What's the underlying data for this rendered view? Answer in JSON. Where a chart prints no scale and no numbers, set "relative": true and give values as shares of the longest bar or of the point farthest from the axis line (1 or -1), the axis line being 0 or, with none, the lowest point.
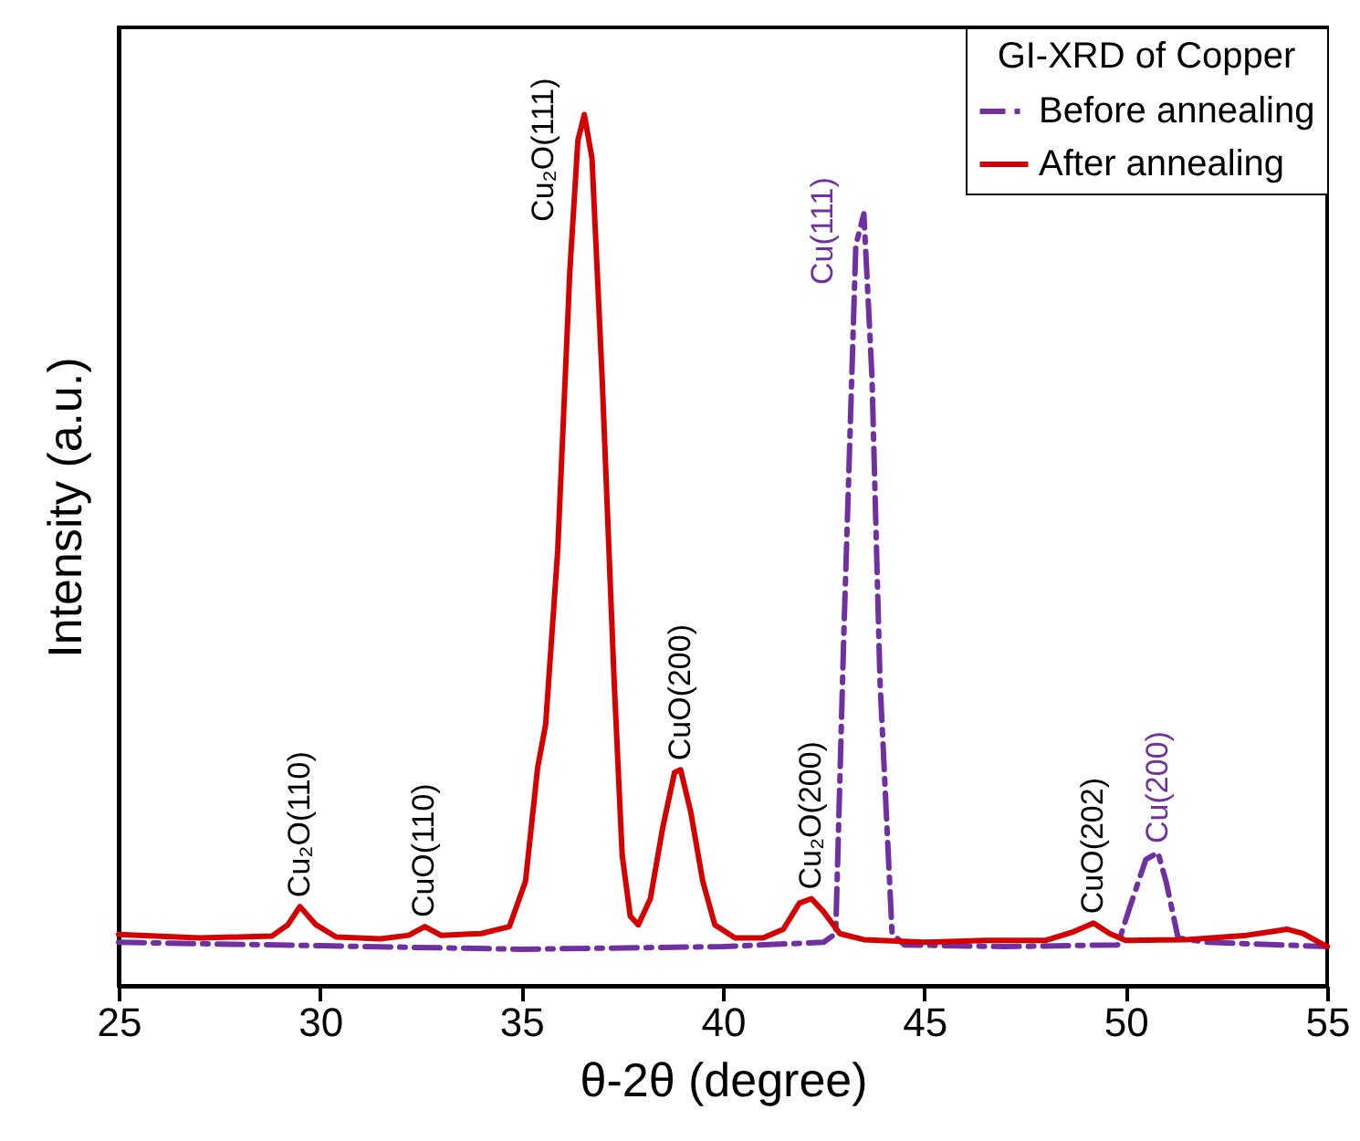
{
  "chart_data": {
    "type": "line",
    "relative": true,
    "xlabel": "θ-2θ (degree)",
    "ylabel": "Intensity (a.u.)",
    "legend_title": "GI-XRD of Copper",
    "legend": "top right",
    "xlim": [
      25,
      55
    ],
    "xticks": [
      25,
      30,
      35,
      40,
      45,
      50,
      55
    ],
    "grid": false,
    "series": [
      {
        "name": "Before annealing",
        "color": "#7030a0",
        "line_style": "dashed",
        "x": [
          25,
          30,
          35,
          40,
          42.5,
          42.8,
          43.0,
          43.3,
          43.5,
          43.7,
          43.9,
          44.2,
          44.5,
          47,
          49.8,
          50.1,
          50.5,
          50.8,
          51.0,
          51.3,
          52,
          55
        ],
        "values": [
          0.05,
          0.046,
          0.042,
          0.045,
          0.05,
          0.06,
          0.4,
          0.85,
          0.886,
          0.7,
          0.35,
          0.06,
          0.047,
          0.045,
          0.047,
          0.09,
          0.145,
          0.153,
          0.12,
          0.055,
          0.05,
          0.045
        ]
      },
      {
        "name": "After annealing",
        "color": "#d40000",
        "line_style": "solid",
        "x": [
          25,
          27,
          28.8,
          29.2,
          29.5,
          29.9,
          30.4,
          31.5,
          32.2,
          32.6,
          33.0,
          34.0,
          34.7,
          35.1,
          35.4,
          35.6,
          35.9,
          36.2,
          36.4,
          36.56,
          36.75,
          37.0,
          37.3,
          37.5,
          37.7,
          37.9,
          38.2,
          38.5,
          38.8,
          38.95,
          39.2,
          39.5,
          39.8,
          40.3,
          41.0,
          41.5,
          41.9,
          42.2,
          42.5,
          42.9,
          43.5,
          45,
          46.5,
          48.0,
          48.7,
          49.2,
          49.6,
          50.0,
          51.5,
          53.0,
          53.6,
          54.0,
          54.4,
          55
        ],
        "values": [
          0.059,
          0.055,
          0.057,
          0.07,
          0.091,
          0.07,
          0.056,
          0.054,
          0.058,
          0.068,
          0.058,
          0.06,
          0.068,
          0.12,
          0.25,
          0.3,
          0.5,
          0.82,
          0.97,
          1,
          0.95,
          0.7,
          0.35,
          0.15,
          0.08,
          0.07,
          0.1,
          0.18,
          0.245,
          0.248,
          0.2,
          0.12,
          0.07,
          0.055,
          0.055,
          0.065,
          0.095,
          0.1,
          0.085,
          0.06,
          0.053,
          0.05,
          0.052,
          0.052,
          0.062,
          0.072,
          0.06,
          0.052,
          0.053,
          0.058,
          0.062,
          0.065,
          0.06,
          0.045
        ]
      }
    ],
    "annotations": [
      {
        "text": "Cu₂O(110)",
        "x": 29.5,
        "y": 0.091
      },
      {
        "text": "CuO(110)",
        "x": 32.6,
        "y": 0.068
      },
      {
        "text": "Cu₂O(111)",
        "x": 36.56,
        "y": 1
      },
      {
        "text": "CuO(200)",
        "x": 38.95,
        "y": 0.248
      },
      {
        "text": "Cu₂O(200)",
        "x": 42.2,
        "y": 0.1
      },
      {
        "text": "Cu(111)",
        "x": 43.5,
        "y": 0.886
      },
      {
        "text": "CuO(202)",
        "x": 49.2,
        "y": 0.072
      },
      {
        "text": "Cu(200)",
        "x": 50.8,
        "y": 0.153
      }
    ]
  }
}
